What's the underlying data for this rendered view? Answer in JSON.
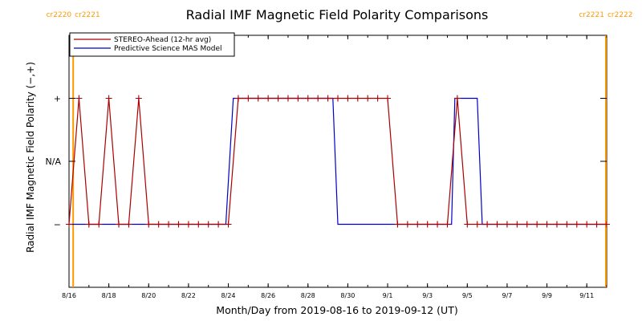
{
  "chart_data": {
    "type": "line",
    "title": "Radial IMF Magnetic Field Polarity Comparisons",
    "xlabel": "Month/Day from 2019-08-16 to 2019-09-12 (UT)",
    "ylabel": "Radial IMF Magnetic Field Polarity (−,+)",
    "x_unit": "days",
    "xlim": [
      "2019-08-16",
      "2019-09-12"
    ],
    "ylim": [
      -2,
      2
    ],
    "x_tick_labels": [
      {
        "date": "2019-08-16",
        "label": "8/16"
      },
      {
        "date": "2019-08-18",
        "label": "8/18"
      },
      {
        "date": "2019-08-20",
        "label": "8/20"
      },
      {
        "date": "2019-08-22",
        "label": "8/22"
      },
      {
        "date": "2019-08-24",
        "label": "8/24"
      },
      {
        "date": "2019-08-26",
        "label": "8/26"
      },
      {
        "date": "2019-08-28",
        "label": "8/28"
      },
      {
        "date": "2019-08-30",
        "label": "8/30"
      },
      {
        "date": "2019-09-01",
        "label": "9/1"
      },
      {
        "date": "2019-09-03",
        "label": "9/3"
      },
      {
        "date": "2019-09-05",
        "label": "9/5"
      },
      {
        "date": "2019-09-07",
        "label": "9/7"
      },
      {
        "date": "2019-09-09",
        "label": "9/9"
      },
      {
        "date": "2019-09-11",
        "label": "9/11"
      }
    ],
    "y_tick_labels": [
      {
        "value": 1,
        "label": "+"
      },
      {
        "value": 0,
        "label": "N/A"
      },
      {
        "value": -1,
        "label": "−"
      }
    ],
    "legend": {
      "placement": "top-left",
      "entries": [
        {
          "label": "STEREO-Ahead (12-hr avg)",
          "color": "#aa0000"
        },
        {
          "label": "Predictive Science MAS Model",
          "color": "#0000cc"
        }
      ]
    },
    "carrington_markers": [
      {
        "date": "2019-08-16T05:00",
        "left_label": "cr2220",
        "right_label": "cr2221",
        "color": "#ff9900"
      },
      {
        "date": "2019-09-11T23:00",
        "left_label": "cr2221",
        "right_label": "cr2222",
        "color": "#ff9900"
      }
    ],
    "series": [
      {
        "name": "STEREO-Ahead (12-hr avg)",
        "color": "#aa0000",
        "marker": "+",
        "points": [
          [
            "2019-08-16T00:00",
            -1
          ],
          [
            "2019-08-16T12:00",
            1
          ],
          [
            "2019-08-17T00:00",
            -1
          ],
          [
            "2019-08-17T12:00",
            -1
          ],
          [
            "2019-08-18T00:00",
            1
          ],
          [
            "2019-08-18T12:00",
            -1
          ],
          [
            "2019-08-19T00:00",
            -1
          ],
          [
            "2019-08-19T12:00",
            1
          ],
          [
            "2019-08-20T00:00",
            -1
          ],
          [
            "2019-08-20T12:00",
            -1
          ],
          [
            "2019-08-21T00:00",
            -1
          ],
          [
            "2019-08-21T12:00",
            -1
          ],
          [
            "2019-08-22T00:00",
            -1
          ],
          [
            "2019-08-22T12:00",
            -1
          ],
          [
            "2019-08-23T00:00",
            -1
          ],
          [
            "2019-08-23T12:00",
            -1
          ],
          [
            "2019-08-24T00:00",
            -1
          ],
          [
            "2019-08-24T12:00",
            1
          ],
          [
            "2019-08-25T00:00",
            1
          ],
          [
            "2019-08-25T12:00",
            1
          ],
          [
            "2019-08-26T00:00",
            1
          ],
          [
            "2019-08-26T12:00",
            1
          ],
          [
            "2019-08-27T00:00",
            1
          ],
          [
            "2019-08-27T12:00",
            1
          ],
          [
            "2019-08-28T00:00",
            1
          ],
          [
            "2019-08-28T12:00",
            1
          ],
          [
            "2019-08-29T00:00",
            1
          ],
          [
            "2019-08-29T12:00",
            1
          ],
          [
            "2019-08-30T00:00",
            1
          ],
          [
            "2019-08-30T12:00",
            1
          ],
          [
            "2019-08-31T00:00",
            1
          ],
          [
            "2019-08-31T12:00",
            1
          ],
          [
            "2019-09-01T00:00",
            1
          ],
          [
            "2019-09-01T12:00",
            -1
          ],
          [
            "2019-09-02T00:00",
            -1
          ],
          [
            "2019-09-02T12:00",
            -1
          ],
          [
            "2019-09-03T00:00",
            -1
          ],
          [
            "2019-09-03T12:00",
            -1
          ],
          [
            "2019-09-04T00:00",
            -1
          ],
          [
            "2019-09-04T12:00",
            1
          ],
          [
            "2019-09-05T00:00",
            -1
          ],
          [
            "2019-09-05T12:00",
            -1
          ],
          [
            "2019-09-06T00:00",
            -1
          ],
          [
            "2019-09-06T12:00",
            -1
          ],
          [
            "2019-09-07T00:00",
            -1
          ],
          [
            "2019-09-07T12:00",
            -1
          ],
          [
            "2019-09-08T00:00",
            -1
          ],
          [
            "2019-09-08T12:00",
            -1
          ],
          [
            "2019-09-09T00:00",
            -1
          ],
          [
            "2019-09-09T12:00",
            -1
          ],
          [
            "2019-09-10T00:00",
            -1
          ],
          [
            "2019-09-10T12:00",
            -1
          ],
          [
            "2019-09-11T00:00",
            -1
          ],
          [
            "2019-09-11T12:00",
            -1
          ],
          [
            "2019-09-12T00:00",
            -1
          ]
        ]
      },
      {
        "name": "Predictive Science MAS Model",
        "color": "#0000cc",
        "marker": "none",
        "points": [
          [
            "2019-08-16T00:00",
            -1
          ],
          [
            "2019-08-23T21:00",
            -1
          ],
          [
            "2019-08-24T06:00",
            1
          ],
          [
            "2019-08-29T06:00",
            1
          ],
          [
            "2019-08-29T12:00",
            -1
          ],
          [
            "2019-09-04T05:00",
            -1
          ],
          [
            "2019-09-04T09:00",
            1
          ],
          [
            "2019-09-05T12:00",
            1
          ],
          [
            "2019-09-05T18:00",
            -1
          ],
          [
            "2019-09-12T00:00",
            -1
          ]
        ]
      }
    ]
  }
}
